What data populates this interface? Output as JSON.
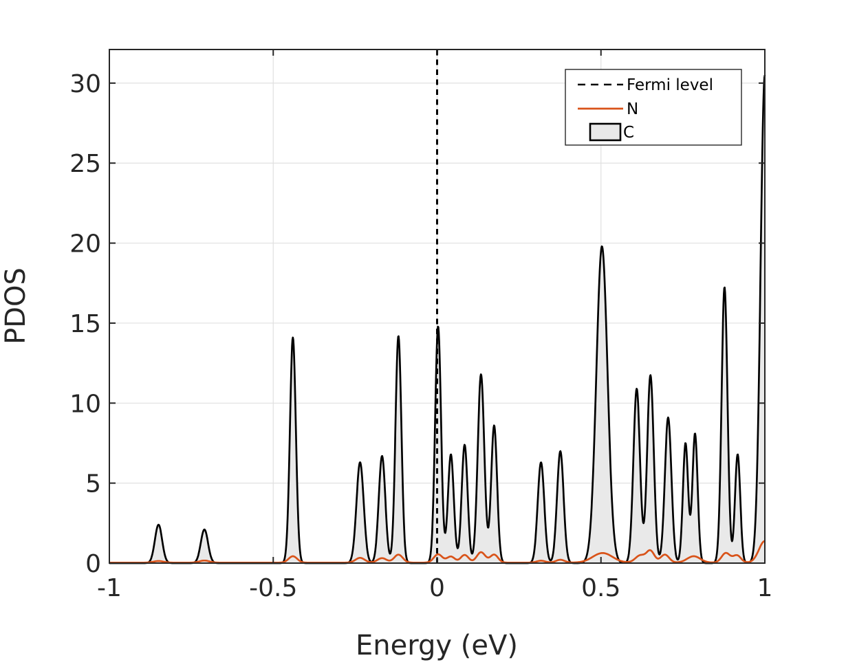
{
  "colors": {
    "background": "#FFFFFF",
    "axis": "#262626",
    "grid": "#E0E0E0",
    "n_line": "#D95319",
    "c_line": "#000000",
    "c_fill": "#E9E9E9",
    "fermi_line": "#000000"
  },
  "legend": {
    "items": [
      {
        "label": "Fermi level",
        "swatch": "dashed-black-line"
      },
      {
        "label": "N",
        "swatch": "orange-solid-line"
      },
      {
        "label": "C",
        "swatch": "gray-filled-patch-black-edge"
      }
    ]
  },
  "chart_data": {
    "type": "area",
    "title": "",
    "xlabel": "Energy (eV)",
    "ylabel": "PDOS",
    "xlim": [
      -1,
      1
    ],
    "ylim": [
      0,
      32.1
    ],
    "grid": true,
    "legend_position": "top-right",
    "x_tick_values": [
      -1,
      -0.5,
      0,
      0.5,
      1
    ],
    "x_tick_labels": [
      "-1",
      "-0.5",
      "0",
      "0.5",
      "1"
    ],
    "y_tick_values": [
      0,
      5,
      10,
      15,
      20,
      25,
      30
    ],
    "y_tick_labels": [
      "0",
      "5",
      "10",
      "15",
      "20",
      "25",
      "30"
    ],
    "fermi_level": {
      "x": 0,
      "style": "dashed",
      "color": "#000000"
    },
    "peak_format": "[energy_eV, pdos_height, gaussian_sigma_eV]",
    "series": [
      {
        "name": "C",
        "style": "filled-area",
        "line_color": "#000000",
        "fill_color": "#E9E9E9",
        "baseline": 0.0,
        "peaks": [
          [
            -0.85,
            2.4,
            0.011
          ],
          [
            -0.71,
            2.1,
            0.011
          ],
          [
            -0.44,
            14.1,
            0.009
          ],
          [
            -0.235,
            6.3,
            0.011
          ],
          [
            -0.168,
            6.7,
            0.01
          ],
          [
            -0.118,
            14.2,
            0.009
          ],
          [
            0.003,
            14.8,
            0.009
          ],
          [
            0.042,
            6.8,
            0.009
          ],
          [
            0.084,
            7.4,
            0.009
          ],
          [
            0.134,
            11.8,
            0.01
          ],
          [
            0.174,
            8.6,
            0.009
          ],
          [
            0.317,
            6.3,
            0.01
          ],
          [
            0.376,
            7.0,
            0.01
          ],
          [
            0.503,
            19.8,
            0.017
          ],
          [
            0.609,
            10.9,
            0.01
          ],
          [
            0.651,
            11.75,
            0.01
          ],
          [
            0.705,
            9.1,
            0.01
          ],
          [
            0.758,
            7.5,
            0.008
          ],
          [
            0.787,
            8.1,
            0.008
          ],
          [
            0.877,
            17.25,
            0.009
          ],
          [
            0.917,
            6.8,
            0.008
          ],
          [
            1.0,
            30.5,
            0.013
          ]
        ]
      },
      {
        "name": "N",
        "style": "line",
        "line_color": "#D95319",
        "baseline": 0.03,
        "peaks": [
          [
            -0.85,
            0.1,
            0.015
          ],
          [
            -0.71,
            0.13,
            0.015
          ],
          [
            -0.44,
            0.4,
            0.013
          ],
          [
            -0.235,
            0.3,
            0.014
          ],
          [
            -0.168,
            0.28,
            0.014
          ],
          [
            -0.118,
            0.5,
            0.013
          ],
          [
            0.003,
            0.52,
            0.013
          ],
          [
            0.042,
            0.38,
            0.012
          ],
          [
            0.084,
            0.48,
            0.012
          ],
          [
            0.134,
            0.65,
            0.013
          ],
          [
            0.174,
            0.5,
            0.012
          ],
          [
            0.317,
            0.12,
            0.013
          ],
          [
            0.376,
            0.18,
            0.013
          ],
          [
            0.505,
            0.6,
            0.03
          ],
          [
            0.62,
            0.45,
            0.015
          ],
          [
            0.651,
            0.72,
            0.012
          ],
          [
            0.695,
            0.5,
            0.013
          ],
          [
            0.783,
            0.4,
            0.02
          ],
          [
            0.881,
            0.6,
            0.013
          ],
          [
            0.915,
            0.45,
            0.012
          ],
          [
            1.0,
            1.35,
            0.018
          ]
        ]
      }
    ]
  }
}
